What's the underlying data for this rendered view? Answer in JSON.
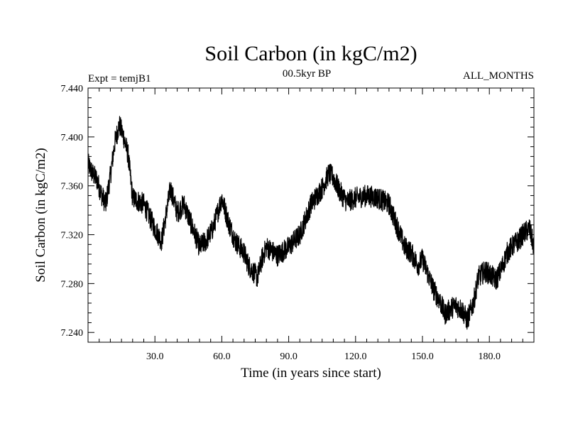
{
  "chart_data": {
    "type": "line",
    "title": "Soil Carbon (in kgC/m2)",
    "subtitle_left": "Expt = temjB1",
    "subtitle_center": "00.5kyr BP",
    "subtitle_right": "ALL_MONTHS",
    "xlabel": "Time (in years since start)",
    "ylabel": "Soil Carbon (in kgC/m2)",
    "xlim": [
      0,
      200
    ],
    "ylim": [
      7.232,
      7.44
    ],
    "x_ticks": [
      30,
      60,
      90,
      120,
      150,
      180
    ],
    "x_tick_labels": [
      "30.0",
      "60.0",
      "90.0",
      "120.0",
      "150.0",
      "180.0"
    ],
    "y_ticks": [
      7.24,
      7.28,
      7.32,
      7.36,
      7.4,
      7.44
    ],
    "y_tick_labels": [
      "7.240",
      "7.280",
      "7.320",
      "7.360",
      "7.400",
      "7.440"
    ],
    "grid": false,
    "line_color": "#000000",
    "noise_amplitude": 0.009,
    "series": [
      {
        "x": [
          0,
          2,
          4,
          6,
          8,
          10,
          12,
          14,
          16,
          18,
          20,
          25,
          30,
          33,
          37,
          40,
          43,
          46,
          50,
          53,
          56,
          60,
          63,
          66,
          70,
          72,
          74,
          76,
          78,
          80,
          85,
          90,
          95,
          100,
          105,
          108,
          110,
          113,
          116,
          120,
          125,
          130,
          135,
          138,
          140,
          142,
          145,
          148,
          150,
          153,
          155,
          158,
          160,
          163,
          165,
          168,
          170,
          173,
          175,
          178,
          180,
          183,
          185,
          188,
          190,
          193,
          195,
          198,
          200
        ],
        "y": [
          7.378,
          7.37,
          7.365,
          7.353,
          7.345,
          7.368,
          7.395,
          7.41,
          7.4,
          7.385,
          7.35,
          7.345,
          7.325,
          7.315,
          7.358,
          7.338,
          7.345,
          7.33,
          7.31,
          7.315,
          7.325,
          7.35,
          7.33,
          7.315,
          7.305,
          7.295,
          7.29,
          7.285,
          7.3,
          7.31,
          7.303,
          7.31,
          7.32,
          7.345,
          7.358,
          7.37,
          7.367,
          7.355,
          7.347,
          7.35,
          7.352,
          7.35,
          7.345,
          7.33,
          7.32,
          7.31,
          7.305,
          7.295,
          7.3,
          7.285,
          7.275,
          7.265,
          7.255,
          7.26,
          7.262,
          7.258,
          7.25,
          7.265,
          7.285,
          7.29,
          7.288,
          7.283,
          7.29,
          7.305,
          7.31,
          7.315,
          7.32,
          7.325,
          7.31
        ]
      }
    ]
  }
}
